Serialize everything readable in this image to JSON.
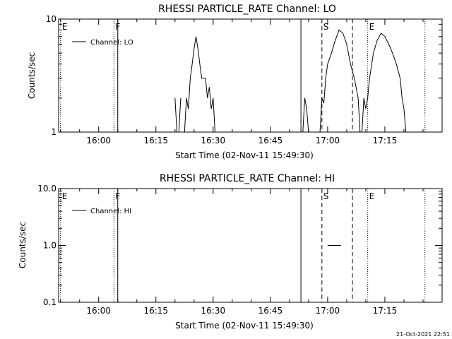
{
  "chart_data": [
    {
      "type": "line",
      "title": "RHESSI PARTICLE_RATE Channel: LO",
      "xlabel": "Start Time (02-Nov-11 15:49:30)",
      "ylabel": "Counts/sec",
      "yscale": "log",
      "ylim": [
        1,
        10
      ],
      "xlim": [
        "15:49:30",
        "17:30:00"
      ],
      "x_ticks": [
        "16:00",
        "16:15",
        "16:30",
        "16:45",
        "17:00",
        "17:15"
      ],
      "y_ticks": [
        "1",
        "10"
      ],
      "legend": "top-left",
      "grid": false,
      "series": [
        {
          "name": "Channel: LO",
          "segments": [
            [
              [
                "16:20:00",
                2
              ],
              [
                "16:20:30",
                1
              ],
              [
                "16:21:00",
                1
              ],
              [
                "16:21:30",
                2
              ]
            ],
            [
              [
                "16:22:30",
                1
              ],
              [
                "16:23:00",
                2
              ],
              [
                "16:23:30",
                1.6
              ],
              [
                "16:24:00",
                3
              ],
              [
                "16:24:30",
                4
              ],
              [
                "16:25:00",
                5.5
              ],
              [
                "16:25:30",
                7
              ],
              [
                "16:26:00",
                5.5
              ],
              [
                "16:26:30",
                4
              ],
              [
                "16:27:00",
                3
              ],
              [
                "16:28:00",
                3
              ],
              [
                "16:28:30",
                2
              ],
              [
                "16:29:00",
                2.5
              ],
              [
                "16:29:30",
                1.6
              ],
              [
                "16:30:00",
                2
              ],
              [
                "16:30:30",
                1
              ]
            ],
            [
              [
                "16:53:30",
                1
              ],
              [
                "16:54:00",
                2
              ],
              [
                "16:54:30",
                1.6
              ],
              [
                "16:55:00",
                1
              ]
            ],
            [
              [
                "16:58:00",
                1
              ],
              [
                "16:58:30",
                2
              ],
              [
                "16:59:00",
                1.8
              ],
              [
                "16:59:30",
                3
              ],
              [
                "17:00:00",
                4
              ],
              [
                "17:01:00",
                5
              ],
              [
                "17:02:00",
                6.5
              ],
              [
                "17:03:00",
                8
              ],
              [
                "17:04:00",
                7.5
              ],
              [
                "17:05:00",
                6
              ],
              [
                "17:06:00",
                4
              ],
              [
                "17:07:00",
                3
              ],
              [
                "17:08:00",
                2
              ],
              [
                "17:08:30",
                1
              ]
            ],
            [
              [
                "17:09:00",
                1
              ],
              [
                "17:09:30",
                2
              ],
              [
                "17:10:00",
                1.6
              ],
              [
                "17:10:30",
                2
              ],
              [
                "17:11:00",
                3
              ],
              [
                "17:12:00",
                5
              ],
              [
                "17:13:00",
                6.5
              ],
              [
                "17:14:00",
                7.5
              ],
              [
                "17:15:00",
                7
              ],
              [
                "17:16:00",
                6
              ],
              [
                "17:17:00",
                5
              ],
              [
                "17:18:00",
                4
              ],
              [
                "17:19:00",
                3
              ],
              [
                "17:19:30",
                2
              ],
              [
                "17:20:00",
                1.6
              ],
              [
                "17:20:30",
                1
              ]
            ]
          ]
        }
      ],
      "markers": [
        {
          "label": "E",
          "time": "15:50:00",
          "style": "dotted"
        },
        {
          "label": "F",
          "time": "16:04:00",
          "style": "dotted"
        },
        {
          "label": "",
          "time": "16:05:00",
          "style": "solid"
        },
        {
          "label": "",
          "time": "16:53:00",
          "style": "solid"
        },
        {
          "label": "S",
          "time": "16:58:30",
          "style": "dashed"
        },
        {
          "label": "",
          "time": "17:06:30",
          "style": "dashed"
        },
        {
          "label": "E",
          "time": "17:10:30",
          "style": "dotted"
        },
        {
          "label": "",
          "time": "17:25:30",
          "style": "dotted"
        }
      ]
    },
    {
      "type": "line",
      "title": "RHESSI PARTICLE_RATE Channel: HI",
      "xlabel": "Start Time (02-Nov-11 15:49:30)",
      "ylabel": "Counts/sec",
      "yscale": "log",
      "ylim": [
        0.1,
        10
      ],
      "xlim": [
        "15:49:30",
        "17:30:00"
      ],
      "x_ticks": [
        "16:00",
        "16:15",
        "16:30",
        "16:45",
        "17:00",
        "17:15"
      ],
      "y_ticks": [
        "0.1",
        "1.0",
        "10.0"
      ],
      "legend": "top-left",
      "grid": false,
      "series": [
        {
          "name": "Channel: HI",
          "segments": [
            [
              [
                "17:00:00",
                1
              ],
              [
                "17:03:30",
                1
              ]
            ]
          ]
        }
      ],
      "markers": [
        {
          "label": "E",
          "time": "15:50:00",
          "style": "dotted"
        },
        {
          "label": "F",
          "time": "16:04:00",
          "style": "dotted"
        },
        {
          "label": "",
          "time": "16:05:00",
          "style": "solid"
        },
        {
          "label": "",
          "time": "16:53:00",
          "style": "solid"
        },
        {
          "label": "S",
          "time": "16:58:30",
          "style": "dashed"
        },
        {
          "label": "",
          "time": "17:06:30",
          "style": "dashed"
        },
        {
          "label": "E",
          "time": "17:10:30",
          "style": "dotted"
        },
        {
          "label": "",
          "time": "17:25:30",
          "style": "dotted"
        }
      ]
    }
  ],
  "footer": {
    "timestamp": "21-Oct-2021 22:51"
  }
}
